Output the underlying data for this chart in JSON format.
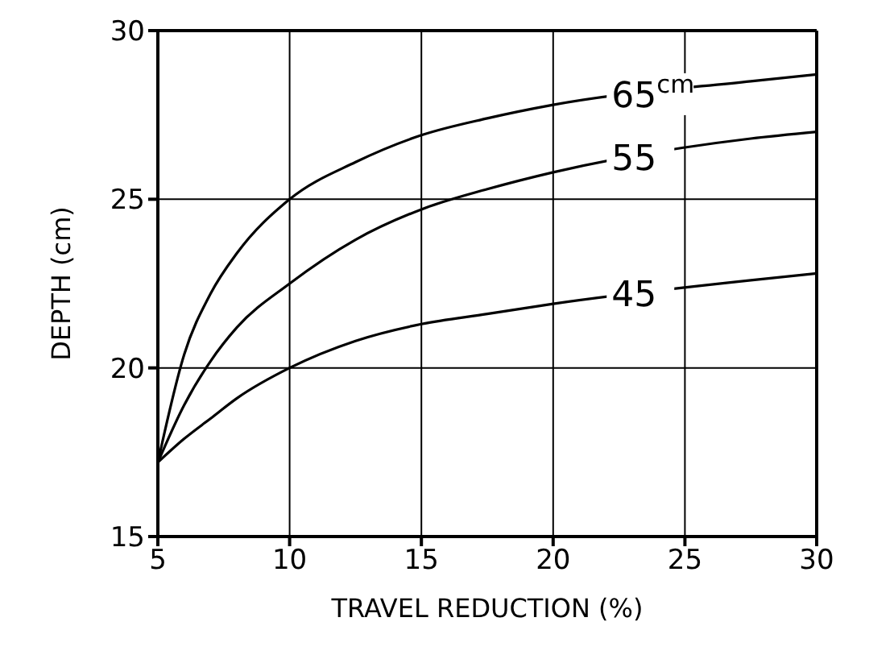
{
  "chart_data": {
    "type": "line",
    "xlabel": "TRAVEL REDUCTION (%)",
    "ylabel": "DEPTH (cm)",
    "xlim": [
      5,
      30
    ],
    "xticks": [
      5,
      10,
      15,
      20,
      25,
      30
    ],
    "ylim": [
      15,
      30
    ],
    "yticks": [
      15,
      20,
      25,
      30
    ],
    "grid": true,
    "marker": "none",
    "line_style": "solid",
    "x": [
      5,
      6,
      7,
      8,
      10,
      12.5,
      15,
      17.5,
      20,
      27.5,
      30
    ],
    "series": [
      {
        "name": "65$^{cm}$",
        "color": "#000000",
        "values": [
          17.2,
          20.4,
          22.2,
          23.4,
          25,
          26.1,
          26.9,
          27.4,
          27.8,
          28.5,
          28.7
        ]
      },
      {
        "name": "55",
        "color": "#000000",
        "values": [
          17.2,
          18.9,
          20.2,
          21.2,
          22.5,
          23.8,
          24.7,
          25.3,
          25.8,
          26.8,
          27
        ]
      },
      {
        "name": "45",
        "color": "#000000",
        "values": [
          17.2,
          17.9,
          18.5,
          19.1,
          20,
          20.8,
          21.3,
          21.6,
          21.9,
          22.6,
          22.8
        ]
      }
    ]
  }
}
